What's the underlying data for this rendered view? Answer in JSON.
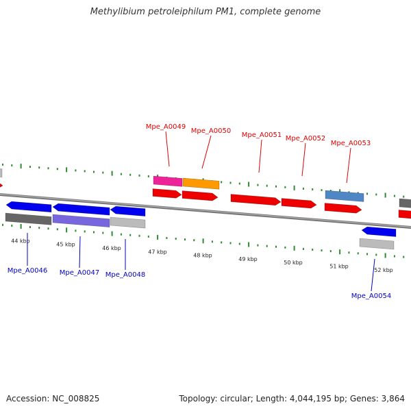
{
  "title": "Methylibium petroleiphilum PM1, complete genome",
  "footer": {
    "accession": "Accession: NC_008825",
    "info": "Topology: circular; Length: 4,044,195 bp; Genes: 3,864"
  },
  "colors": {
    "backbone": "#8a8a8a",
    "tick": "#2e8b2e",
    "top_label": "#dd0000",
    "bottom_label": "#0000bb",
    "red": "#ee0000",
    "blue": "#0000ee",
    "grey_dark": "#666666",
    "grey_light": "#bbbbbb",
    "purple": "#7766dd",
    "pink": "#ee2299",
    "orange": "#ff9900",
    "steelblue": "#4f86c6"
  },
  "kbp_labels": [
    "44 kbp",
    "45 kbp",
    "46 kbp",
    "47 kbp",
    "48 kbp",
    "49 kbp",
    "50 kbp",
    "51 kbp",
    "52 kbp"
  ],
  "genes_top": [
    "Mpe_A0049",
    "Mpe_A0050",
    "Mpe_A0051",
    "Mpe_A0052",
    "Mpe_A0053"
  ],
  "genes_bottom": [
    "Mpe_A0046",
    "Mpe_A0047",
    "Mpe_A0048",
    "Mpe_A0054"
  ]
}
